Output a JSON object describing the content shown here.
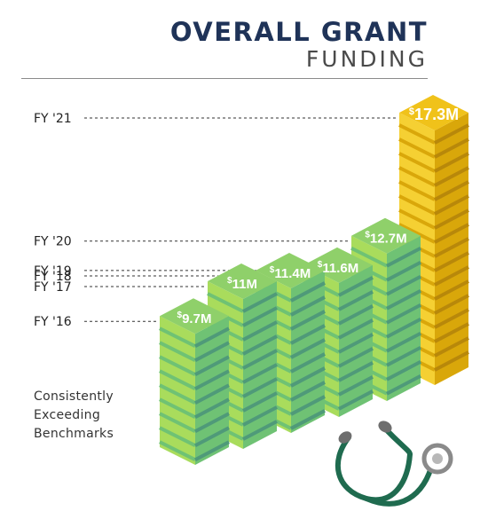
{
  "header": {
    "title": "OVERALL GRANT",
    "subtitle": "FUNDING"
  },
  "caption": {
    "line1": "Consistently",
    "line2": "Exceeding",
    "line3": "Benchmarks"
  },
  "colors": {
    "green_light": "#a9dc5c",
    "green_mid": "#6fc274",
    "green_dark": "#4f9a79",
    "gold_light": "#f5d033",
    "gold_dark": "#d9a70a",
    "gold_top": "#f0c21a",
    "stethoscope": "#1f6b4f",
    "stethoscope_gray": "#6e6e6e"
  },
  "chart_data": {
    "type": "bar",
    "title": "OVERALL GRANT FUNDING",
    "categories": [
      "FY '16",
      "FY '17",
      "FY '18",
      "FY '19",
      "FY '20",
      "FY '21"
    ],
    "values": [
      9.7,
      11,
      11.4,
      11.6,
      12.7,
      17.3
    ],
    "value_labels": [
      "$9.7M",
      "$11M",
      "$11.4M",
      "$11.6M",
      "$12.7M",
      "$17.3M"
    ],
    "unit": "$M",
    "highlight_index": 5,
    "ylim": [
      4.8,
      17.3
    ],
    "grid": false,
    "legend": "none"
  }
}
